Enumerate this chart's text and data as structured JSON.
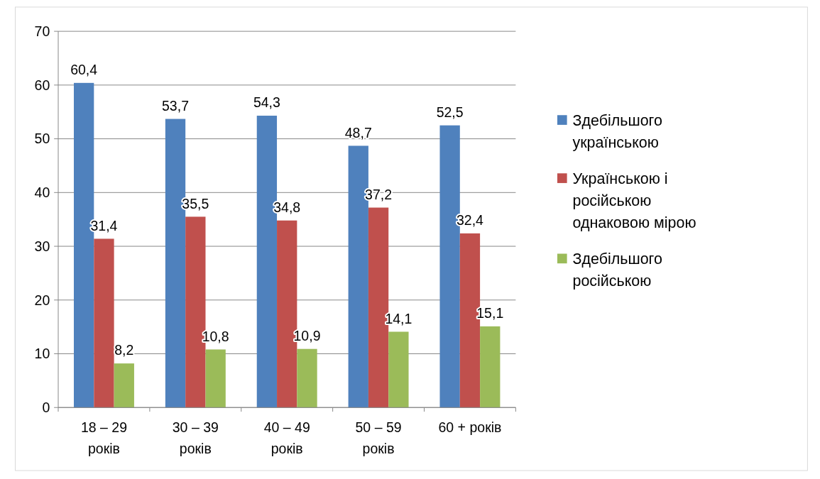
{
  "chart_data": {
    "type": "bar",
    "categories": [
      "18 – 29 років",
      "30 – 39 років",
      "40 – 49 років",
      "50 – 59 років",
      "60 + років"
    ],
    "series": [
      {
        "name": "Здебільшого українською",
        "color": "#4f81bd",
        "values": [
          60.4,
          53.7,
          54.3,
          48.7,
          52.5
        ],
        "value_labels": [
          "60,4",
          "53,7",
          "54,3",
          "48,7",
          "52,5"
        ]
      },
      {
        "name": "Українською і російською однаковою мірою",
        "color": "#c0504d",
        "values": [
          31.4,
          35.5,
          34.8,
          37.2,
          32.4
        ],
        "value_labels": [
          "31,4",
          "35,5",
          "34,8",
          "37,2",
          "32,4"
        ]
      },
      {
        "name": "Здебільшого російською",
        "color": "#9bbb59",
        "values": [
          8.2,
          10.8,
          10.9,
          14.1,
          15.1
        ],
        "value_labels": [
          "8,2",
          "10,8",
          "10,9",
          "14,1",
          "15,1"
        ]
      }
    ],
    "ylim": [
      0,
      70
    ],
    "yticks": [
      0,
      10,
      20,
      30,
      40,
      50,
      60,
      70
    ],
    "grid": "y",
    "legend": "right"
  }
}
